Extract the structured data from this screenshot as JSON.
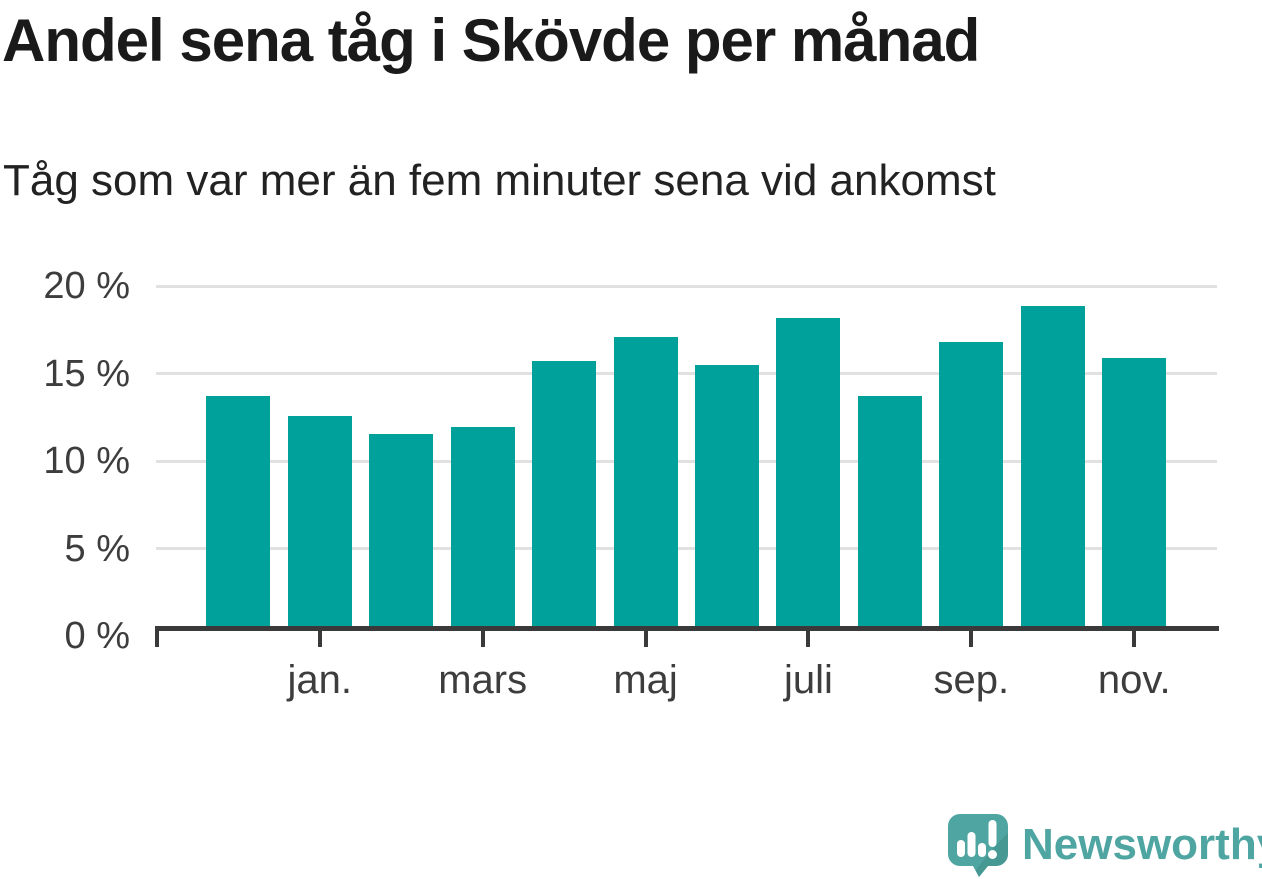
{
  "title": "Andel sena tåg i Skövde per månad",
  "subtitle": "Tåg som var mer än fem minuter sena vid ankomst",
  "chart_data": {
    "type": "bar",
    "title": "Andel sena tåg i Skövde per månad",
    "subtitle": "Tåg som var mer än fem minuter sena vid ankomst",
    "unit": "%",
    "values": [
      13.6,
      12.4,
      11.4,
      11.8,
      15.6,
      17.0,
      15.4,
      18.1,
      13.6,
      16.7,
      18.8,
      15.8
    ],
    "x_tick_labels": [
      "jan.",
      "mars",
      "maj",
      "juli",
      "sep.",
      "nov."
    ],
    "labeled_bar_indices": [
      1,
      3,
      5,
      7,
      9,
      11
    ],
    "y_tick_labels": [
      "0 %",
      "5 %",
      "10 %",
      "15 %",
      "20 %"
    ],
    "y_tick_values": [
      0,
      5,
      10,
      15,
      20
    ],
    "ylim": [
      0,
      20
    ],
    "grid": true,
    "legend": false,
    "bar_color": "#00a19b"
  },
  "colors": {
    "bar": "#00a19b",
    "gridline": "#e1e1e1",
    "axis": "#3a3a3a",
    "axis_text": "#3d3d3d",
    "title_text": "#1a1a1a",
    "logo_teal": "#4fa5a1",
    "logo_shadow": "#3f8e89",
    "background": "#ffffff"
  },
  "logo": {
    "text": "Newsworthy"
  }
}
